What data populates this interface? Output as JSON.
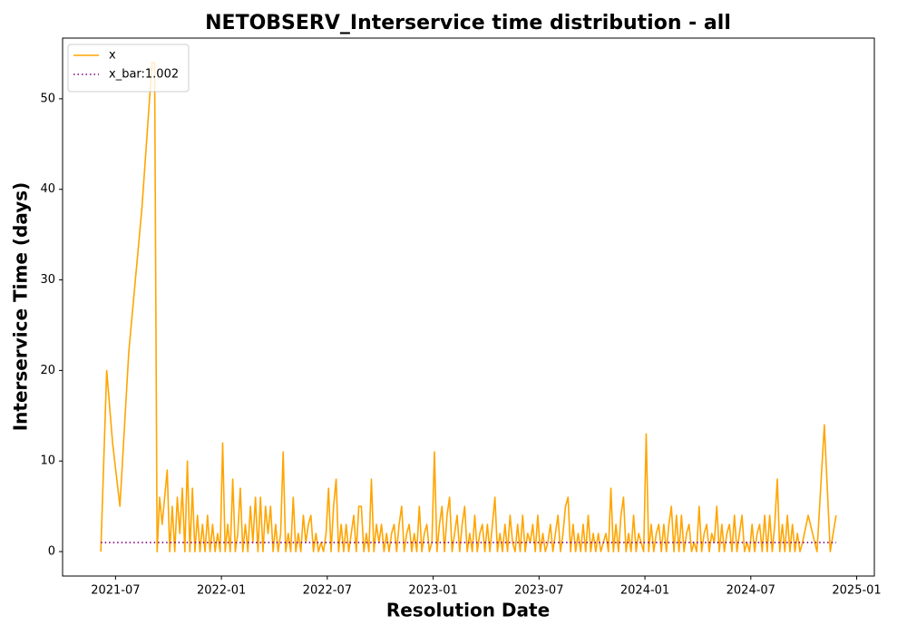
{
  "chart_data": {
    "type": "line",
    "title": "NETOBSERV_Interservice time distribution - all",
    "xlabel": "Resolution Date",
    "ylabel": "Interservice Time (days)",
    "x": [
      "2021-06",
      "2021-06",
      "2021-06",
      "2021-07",
      "2021-07",
      "2021-08",
      "2021-09",
      "2021-09",
      "2021-09",
      "2021-09",
      "2021-09",
      "2021-09",
      "2021-09",
      "2021-10",
      "2021-10",
      "2021-10",
      "2021-10",
      "2021-10",
      "2021-10",
      "2021-10",
      "2021-11",
      "2021-11",
      "2021-11",
      "2021-11",
      "2021-11",
      "2021-11",
      "2021-11",
      "2021-12",
      "2021-12",
      "2021-12",
      "2021-12",
      "2021-12",
      "2021-12",
      "2021-12",
      "2022-01",
      "2022-01",
      "2022-01",
      "2022-01",
      "2022-01",
      "2022-01",
      "2022-01",
      "2022-02",
      "2022-02",
      "2022-02",
      "2022-02",
      "2022-02",
      "2022-02",
      "2022-02",
      "2022-03",
      "2022-03",
      "2022-03",
      "2022-03",
      "2022-03",
      "2022-03",
      "2022-03",
      "2022-04",
      "2022-04",
      "2022-04",
      "2022-04",
      "2022-04",
      "2022-04",
      "2022-04",
      "2022-05",
      "2022-05",
      "2022-05",
      "2022-05",
      "2022-05",
      "2022-05",
      "2022-05",
      "2022-06",
      "2022-06",
      "2022-06",
      "2022-06",
      "2022-06",
      "2022-06",
      "2022-06",
      "2022-07",
      "2022-07",
      "2022-07",
      "2022-07",
      "2022-07",
      "2022-07",
      "2022-07",
      "2022-08",
      "2022-08",
      "2022-08",
      "2022-08",
      "2022-08",
      "2022-08",
      "2022-08",
      "2022-09",
      "2022-09",
      "2022-09",
      "2022-09",
      "2022-09",
      "2022-09",
      "2022-09",
      "2022-10",
      "2022-10",
      "2022-10",
      "2022-10",
      "2022-10",
      "2022-10",
      "2022-10",
      "2022-11",
      "2022-11",
      "2022-11",
      "2022-11",
      "2022-11",
      "2022-11",
      "2022-11",
      "2022-12",
      "2022-12",
      "2022-12",
      "2022-12",
      "2022-12",
      "2022-12",
      "2022-12",
      "2023-01",
      "2023-01",
      "2023-01",
      "2023-01",
      "2023-01",
      "2023-01",
      "2023-01",
      "2023-02",
      "2023-02",
      "2023-02",
      "2023-02",
      "2023-02",
      "2023-02",
      "2023-02",
      "2023-03",
      "2023-03",
      "2023-03",
      "2023-03",
      "2023-03",
      "2023-03",
      "2023-03",
      "2023-04",
      "2023-04",
      "2023-04",
      "2023-04",
      "2023-04",
      "2023-04",
      "2023-04",
      "2023-05",
      "2023-05",
      "2023-05",
      "2023-05",
      "2023-05",
      "2023-05",
      "2023-05",
      "2023-06",
      "2023-06",
      "2023-06",
      "2023-06",
      "2023-06",
      "2023-06",
      "2023-06",
      "2023-07",
      "2023-07",
      "2023-07",
      "2023-07",
      "2023-07",
      "2023-07",
      "2023-07",
      "2023-08",
      "2023-08",
      "2023-08",
      "2023-08",
      "2023-08",
      "2023-08",
      "2023-08",
      "2023-09",
      "2023-09",
      "2023-09",
      "2023-09",
      "2023-09",
      "2023-09",
      "2023-09",
      "2023-10",
      "2023-10",
      "2023-10",
      "2023-10",
      "2023-10",
      "2023-10",
      "2023-10",
      "2023-11",
      "2023-11",
      "2023-11",
      "2023-11",
      "2023-11",
      "2023-11",
      "2023-11",
      "2023-12",
      "2023-12",
      "2023-12",
      "2023-12",
      "2023-12",
      "2023-12",
      "2023-12",
      "2024-01",
      "2024-01",
      "2024-01",
      "2024-01",
      "2024-01",
      "2024-01",
      "2024-01",
      "2024-02",
      "2024-02",
      "2024-02",
      "2024-02",
      "2024-02",
      "2024-02",
      "2024-02",
      "2024-03",
      "2024-03",
      "2024-03",
      "2024-03",
      "2024-03",
      "2024-03",
      "2024-03",
      "2024-04",
      "2024-04",
      "2024-04",
      "2024-04",
      "2024-04",
      "2024-04",
      "2024-04",
      "2024-05",
      "2024-05",
      "2024-05",
      "2024-05",
      "2024-05",
      "2024-05",
      "2024-05",
      "2024-06",
      "2024-06",
      "2024-06",
      "2024-06",
      "2024-06",
      "2024-06",
      "2024-06",
      "2024-07",
      "2024-07",
      "2024-07",
      "2024-07",
      "2024-07",
      "2024-07",
      "2024-07",
      "2024-08",
      "2024-08",
      "2024-08",
      "2024-08",
      "2024-08",
      "2024-08",
      "2024-08",
      "2024-09",
      "2024-09",
      "2024-09",
      "2024-09",
      "2024-09",
      "2024-09",
      "2024-09",
      "2024-10",
      "2024-10",
      "2024-11",
      "2024-11",
      "2024-11"
    ],
    "series": [
      {
        "name": "x",
        "color": "#ffa500",
        "values": [
          0,
          20,
          12,
          5,
          22,
          38,
          54,
          54,
          0,
          6,
          3,
          6,
          9,
          0,
          5,
          0,
          6,
          2,
          7,
          0,
          10,
          0,
          7,
          0,
          4,
          0,
          3,
          0,
          4,
          0,
          3,
          0,
          2,
          0,
          12,
          0,
          3,
          0,
          8,
          0,
          2,
          7,
          0,
          3,
          0,
          5,
          1,
          6,
          0,
          6,
          0,
          5,
          2,
          5,
          0,
          3,
          0,
          2,
          11,
          0,
          2,
          0,
          6,
          0,
          2,
          0,
          4,
          1,
          3,
          4,
          0,
          2,
          0,
          1,
          0,
          2,
          7,
          0,
          5,
          8,
          0,
          3,
          0,
          3,
          0,
          2,
          4,
          0,
          5,
          5,
          0,
          2,
          0,
          8,
          0,
          3,
          1,
          3,
          0,
          2,
          0,
          2,
          3,
          0,
          3,
          5,
          0,
          2,
          3,
          0,
          2,
          0,
          5,
          0,
          2,
          3,
          0,
          1,
          11,
          0,
          3,
          5,
          0,
          4,
          6,
          0,
          2,
          4,
          0,
          3,
          5,
          0,
          2,
          0,
          4,
          0,
          2,
          3,
          0,
          3,
          0,
          3,
          6,
          0,
          2,
          0,
          3,
          0,
          4,
          1,
          0,
          3,
          0,
          4,
          0,
          2,
          1,
          3,
          0,
          4,
          0,
          2,
          0,
          1,
          3,
          0,
          2,
          4,
          0,
          2,
          5,
          6,
          0,
          3,
          0,
          2,
          0,
          3,
          0,
          4,
          0,
          2,
          0,
          2,
          0,
          1,
          2,
          0,
          7,
          0,
          3,
          0,
          4,
          6,
          0,
          2,
          0,
          4,
          0,
          2,
          1,
          0,
          13,
          0,
          3,
          0,
          2,
          3,
          0,
          3,
          0,
          3,
          5,
          0,
          4,
          0,
          4,
          0,
          2,
          3,
          0,
          1,
          0,
          5,
          0,
          2,
          3,
          0,
          2,
          1,
          5,
          0,
          3,
          0,
          2,
          3,
          0,
          4,
          0,
          2,
          4,
          0,
          1,
          0,
          3,
          0,
          2,
          3,
          0,
          4,
          0,
          4,
          0,
          3,
          8,
          0,
          3,
          0,
          4,
          0,
          3,
          0,
          2,
          0,
          1,
          4,
          0,
          14,
          0,
          4
        ]
      }
    ],
    "hlines": [
      {
        "name": "x_bar:1.002",
        "value": 1.002,
        "color": "#800080"
      }
    ],
    "xlim": [
      "2021-04",
      "2025-02"
    ],
    "xticks": [
      "2021-07",
      "2022-01",
      "2022-07",
      "2023-01",
      "2023-07",
      "2024-01",
      "2024-07",
      "2025-01"
    ],
    "ylim": [
      -2.7,
      56.7
    ],
    "yticks": [
      0,
      10,
      20,
      30,
      40,
      50
    ],
    "grid": false,
    "legend": "upper left"
  }
}
